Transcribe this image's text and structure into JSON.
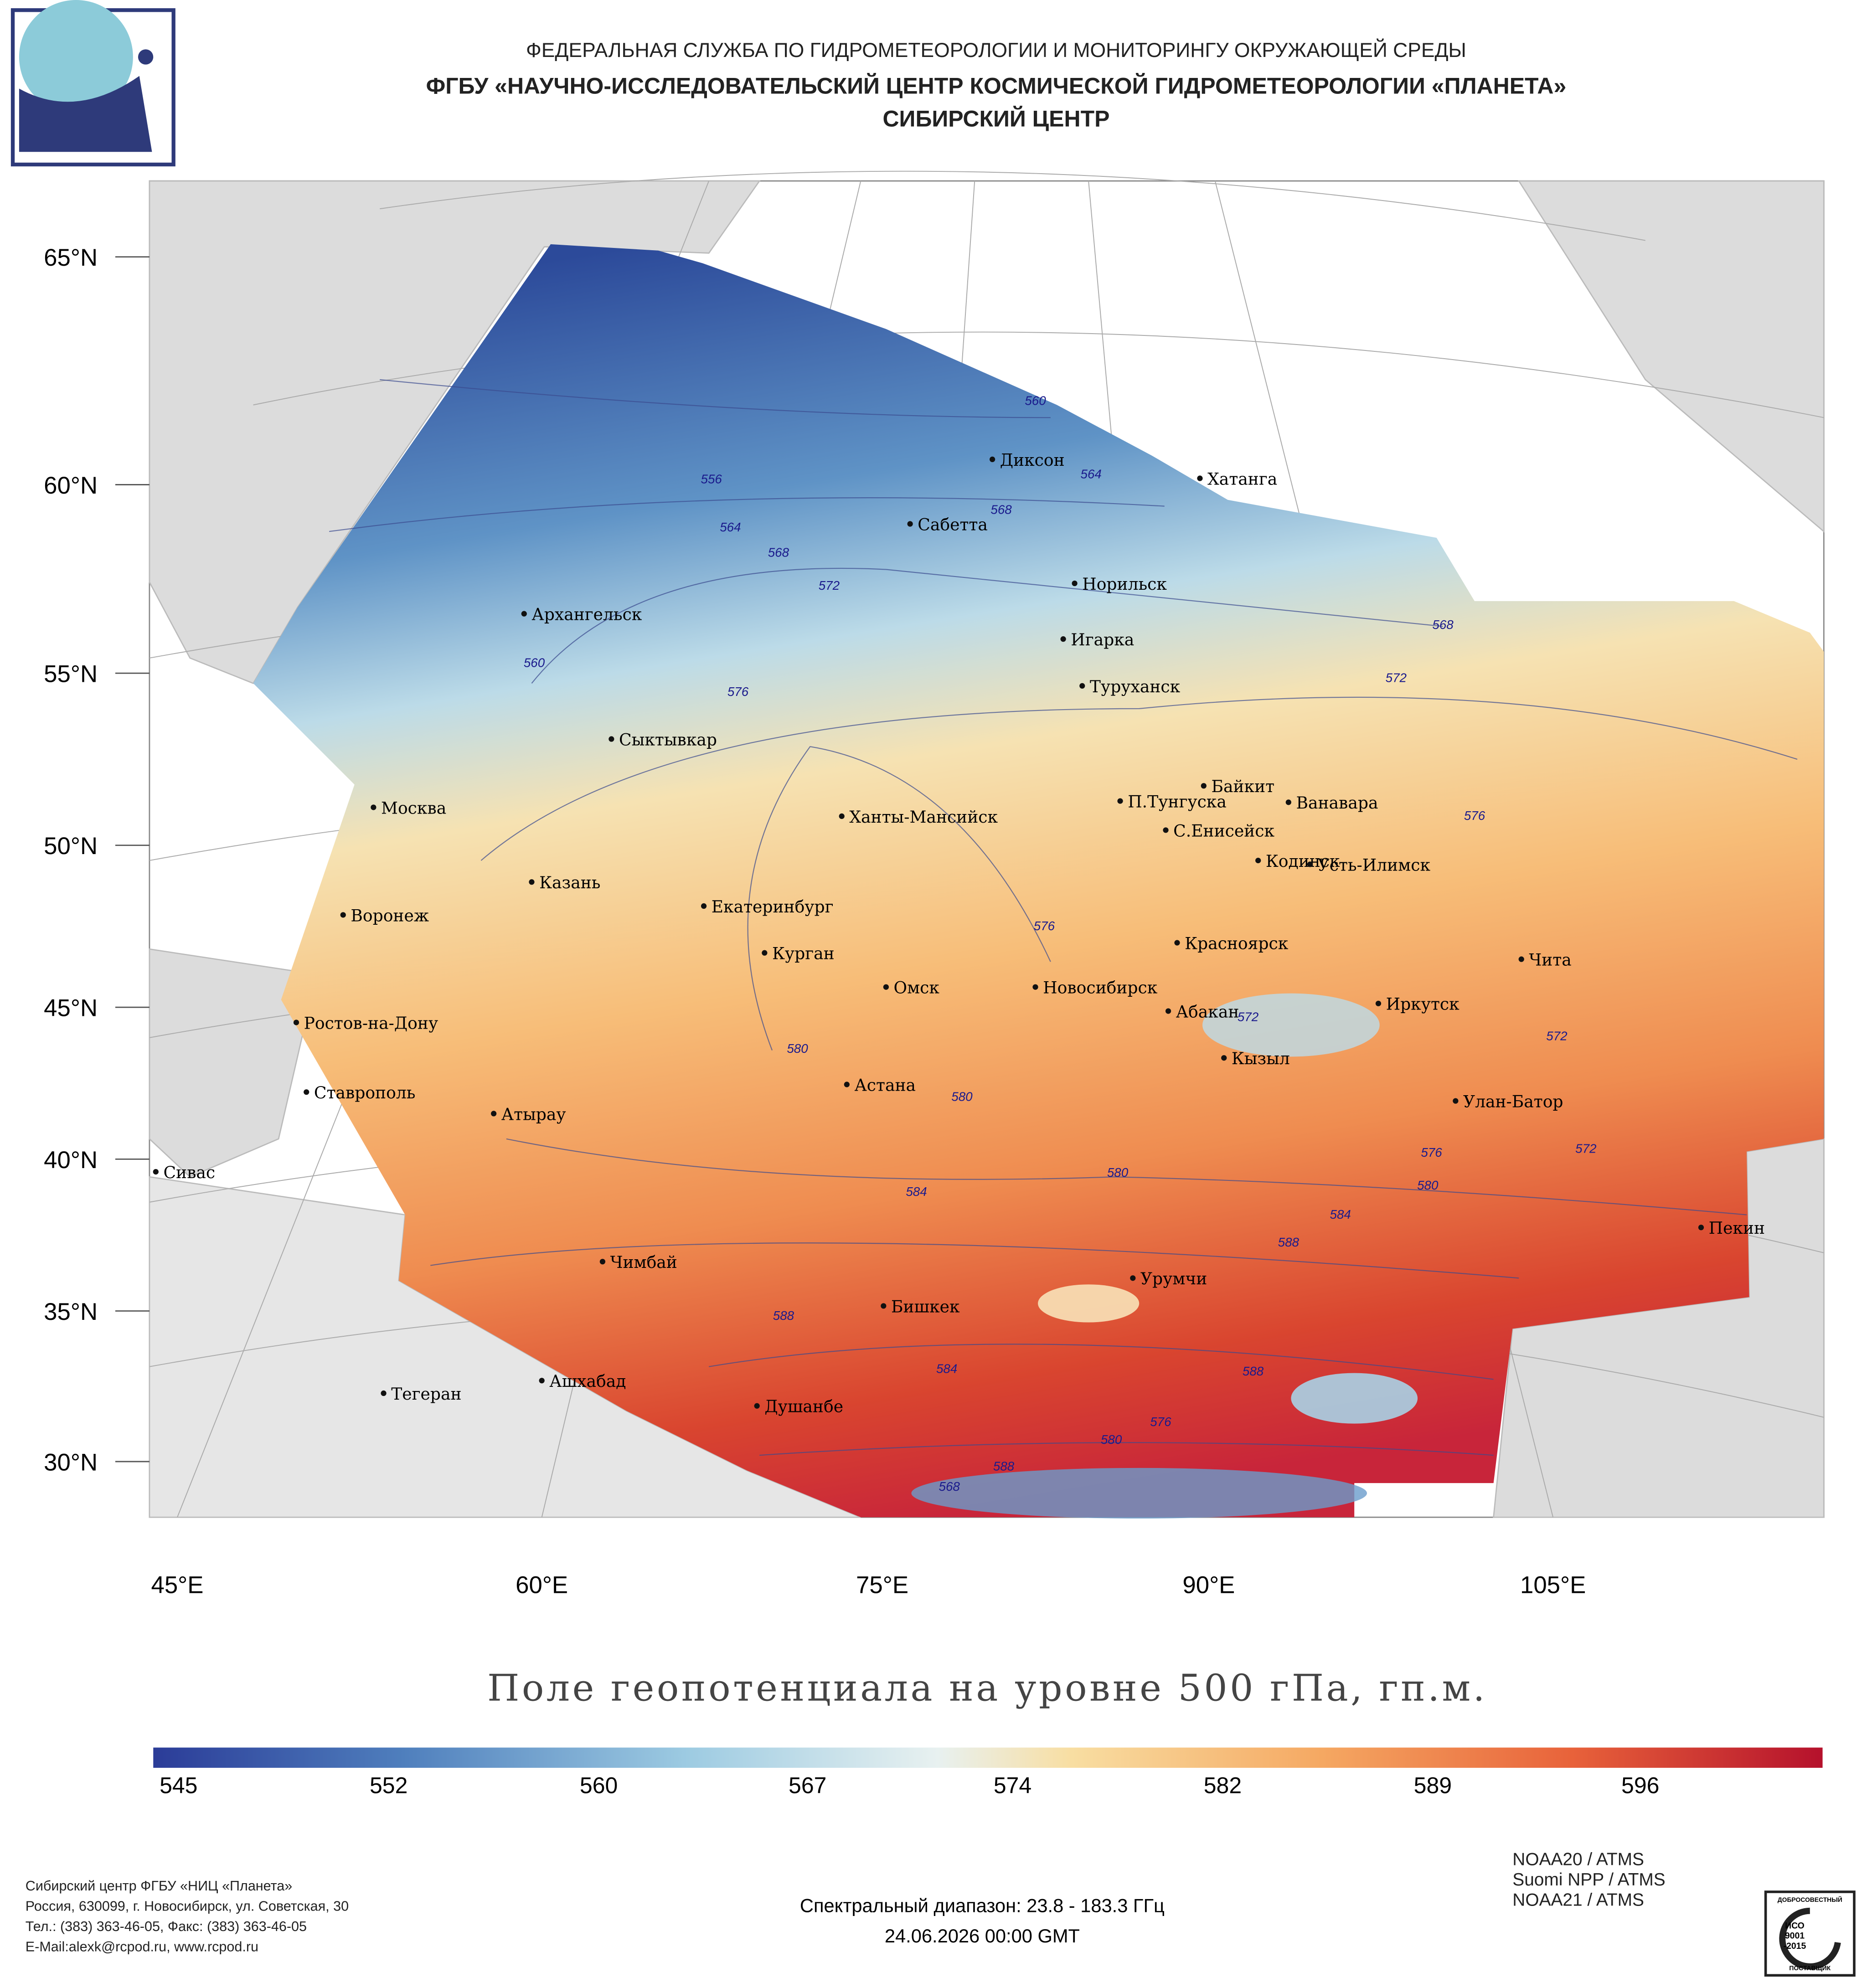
{
  "header": {
    "agency": "ФЕДЕРАЛЬНАЯ СЛУЖБА ПО ГИДРОМЕТЕОРОЛОГИИ И МОНИТОРИНГУ ОКРУЖАЮЩЕЙ СРЕДЫ",
    "institute": "ФГБУ «НАУЧНО-ИССЛЕДОВАТЕЛЬСКИЙ ЦЕНТР КОСМИЧЕСКОЙ ГИДРОМЕТЕОРОЛОГИИ «ПЛАНЕТА»",
    "center": "СИБИРСКИЙ ЦЕНТР"
  },
  "map": {
    "lat_labels": [
      "65°N",
      "60°N",
      "55°N",
      "50°N",
      "45°N",
      "40°N",
      "35°N",
      "30°N"
    ],
    "lon_labels": [
      "45°E",
      "60°E",
      "75°E",
      "90°E",
      "105°E"
    ],
    "cities": [
      "Диксон",
      "Хатанга",
      "Сабетта",
      "Норильск",
      "Архангельск",
      "Игарка",
      "Туруханск",
      "Сыктывкар",
      "Байкит",
      "П.Тунгуска",
      "Ванавара",
      "Москва",
      "Ханты-Мансийск",
      "С.Енисейск",
      "Кодинск",
      "Усть-Илимск",
      "Казань",
      "Екатеринбург",
      "Воронеж",
      "Красноярск",
      "Курган",
      "Чита",
      "Омск",
      "Новосибирск",
      "Иркутск",
      "Абакан",
      "Ростов-на-Дону",
      "Кызыл",
      "Астана",
      "Ставрополь",
      "Улан-Батор",
      "Атырау",
      "Сивас",
      "Пекин",
      "Чимбай",
      "Урумчи",
      "Бишкек",
      "Ашхабад",
      "Тегеран",
      "Душанбе"
    ],
    "contour_labels": [
      560,
      564,
      556,
      568,
      564,
      568,
      572,
      560,
      576,
      568,
      572,
      576,
      576,
      572,
      580,
      580,
      572,
      572,
      576,
      580,
      580,
      584,
      584,
      588,
      588,
      584,
      588,
      576,
      580,
      588,
      568
    ]
  },
  "title": "Поле геопотенциала на уровне 500 гПа, гп.м.",
  "colorbar": {
    "ticks": [
      545,
      552,
      560,
      567,
      574,
      582,
      589,
      596
    ]
  },
  "footer": {
    "address": [
      "Сибирский центр ФГБУ «НИЦ «Планета»",
      "Россия, 630099, г. Новосибирск, ул. Советская, 30",
      "Тел.: (383) 363-46-05, Факс: (383) 363-46-05",
      "E-Mail:alexk@rcpod.ru, www.rcpod.ru"
    ],
    "spectral": "Спектральный диапазон: 23.8 - 183.3 ГГц",
    "date": "24.06.2026 00:00 GMT",
    "instruments": [
      "NOAA20 / ATMS",
      "Suomi NPP / ATMS",
      "NOAA21 / ATMS"
    ],
    "cert": [
      "ДОБРОСОВЕСТНЫЙ",
      "ИСО",
      "9001",
      "-2015",
      "ПОСТАВЩИК"
    ]
  }
}
